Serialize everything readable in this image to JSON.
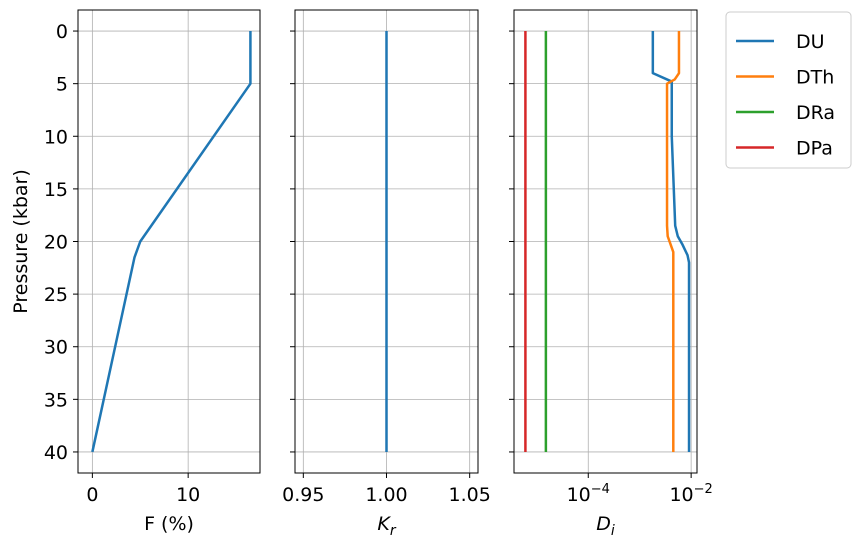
{
  "chart_data": [
    {
      "type": "line",
      "xlabel": "F (%)",
      "ylabel": "Pressure (kbar)",
      "xlim": [
        -1.5,
        17.5
      ],
      "ylim": [
        42,
        -2
      ],
      "y_inverted": true,
      "grid": true,
      "xticks": [
        0,
        10
      ],
      "yticks": [
        0,
        5,
        10,
        15,
        20,
        25,
        30,
        35,
        40
      ],
      "series": [
        {
          "color": "#1f77b4",
          "x": [
            16.5,
            16.5,
            5,
            4.4,
            0
          ],
          "y": [
            0,
            5,
            20,
            21.5,
            40
          ]
        }
      ]
    },
    {
      "type": "line",
      "xlabel": "K_r",
      "xlim": [
        0.945,
        1.055
      ],
      "ylim": [
        42,
        -2
      ],
      "grid": true,
      "xticks": [
        0.95,
        1.0,
        1.05
      ],
      "xtick_labels": [
        "0.95",
        "1.00",
        "1.05"
      ],
      "series": [
        {
          "color": "#1f77b4",
          "x": [
            1.0,
            1.0
          ],
          "y": [
            0,
            40
          ]
        }
      ]
    },
    {
      "type": "line",
      "xlabel": "D_i",
      "xscale": "log",
      "xlim": [
        3.6e-06,
        0.013
      ],
      "ylim": [
        42,
        -2
      ],
      "grid": true,
      "xticks": [
        0.0001,
        0.01
      ],
      "legend_position": "outside-right-top",
      "series": [
        {
          "name": "DU",
          "color": "#1f77b4",
          "x": [
            0.0018,
            0.0018,
            0.0042,
            0.0042,
            0.0049,
            0.0055,
            0.0068,
            0.0085,
            0.0091,
            0.0091
          ],
          "y": [
            0,
            4,
            4.8,
            10,
            18.5,
            19.5,
            20.3,
            21.3,
            22,
            40
          ]
        },
        {
          "name": "DTh",
          "color": "#ff7f0e",
          "x": [
            0.0058,
            0.0058,
            0.0048,
            0.0034,
            0.0034,
            0.0035,
            0.0045,
            0.0045
          ],
          "y": [
            0,
            4,
            4.6,
            5,
            18.5,
            19.5,
            21,
            40
          ]
        },
        {
          "name": "DRa",
          "color": "#2ca02c",
          "x": [
            1.5e-05,
            1.5e-05
          ],
          "y": [
            0,
            40
          ]
        },
        {
          "name": "DPa",
          "color": "#d62728",
          "x": [
            6e-06,
            6e-06
          ],
          "y": [
            0,
            40
          ]
        }
      ]
    }
  ]
}
